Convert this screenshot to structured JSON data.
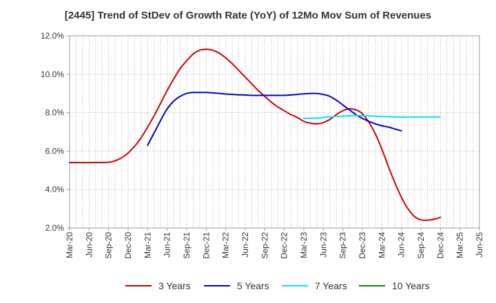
{
  "chart_data": {
    "type": "line",
    "title": "[2445]  Trend of StDev of Growth Rate (YoY) of 12Mo Mov Sum of Revenues",
    "xlabel": "",
    "ylabel": "",
    "ylim": [
      2.0,
      12.0
    ],
    "yticks": [
      2.0,
      4.0,
      6.0,
      8.0,
      10.0,
      12.0
    ],
    "ytick_labels": [
      "2.0%",
      "4.0%",
      "6.0%",
      "8.0%",
      "10.0%",
      "12.0%"
    ],
    "xtick_labels": [
      "Mar-20",
      "Jun-20",
      "Sep-20",
      "Dec-20",
      "Mar-21",
      "Jun-21",
      "Sep-21",
      "Dec-21",
      "Mar-22",
      "Jun-22",
      "Sep-22",
      "Dec-22",
      "Mar-23",
      "Jun-23",
      "Sep-23",
      "Dec-23",
      "Mar-24",
      "Jun-24",
      "Sep-24",
      "Dec-24",
      "Mar-25",
      "Jun-25"
    ],
    "x_index_range": [
      0,
      63
    ],
    "grid": true,
    "legend_position": "bottom",
    "series": [
      {
        "name": "3 Years",
        "color": "#cc0000",
        "points": [
          [
            0,
            5.4
          ],
          [
            3,
            5.4
          ],
          [
            6,
            5.42
          ],
          [
            7,
            5.5
          ],
          [
            8,
            5.65
          ],
          [
            9,
            5.9
          ],
          [
            10,
            6.25
          ],
          [
            11,
            6.7
          ],
          [
            12,
            7.25
          ],
          [
            13,
            7.85
          ],
          [
            14,
            8.5
          ],
          [
            15,
            9.15
          ],
          [
            16,
            9.75
          ],
          [
            17,
            10.3
          ],
          [
            18,
            10.7
          ],
          [
            19,
            11.05
          ],
          [
            20,
            11.25
          ],
          [
            21,
            11.3
          ],
          [
            22,
            11.25
          ],
          [
            23,
            11.1
          ],
          [
            24,
            10.85
          ],
          [
            25,
            10.55
          ],
          [
            26,
            10.2
          ],
          [
            27,
            9.85
          ],
          [
            28,
            9.5
          ],
          [
            29,
            9.15
          ],
          [
            30,
            8.85
          ],
          [
            31,
            8.55
          ],
          [
            32,
            8.3
          ],
          [
            33,
            8.1
          ],
          [
            34,
            7.9
          ],
          [
            35,
            7.75
          ],
          [
            36,
            7.55
          ],
          [
            37,
            7.45
          ],
          [
            38,
            7.42
          ],
          [
            39,
            7.48
          ],
          [
            40,
            7.65
          ],
          [
            41,
            7.9
          ],
          [
            42,
            8.1
          ],
          [
            43,
            8.2
          ],
          [
            44,
            8.15
          ],
          [
            45,
            7.95
          ],
          [
            46,
            7.5
          ],
          [
            47,
            6.9
          ],
          [
            48,
            6.1
          ],
          [
            49,
            5.2
          ],
          [
            50,
            4.35
          ],
          [
            51,
            3.6
          ],
          [
            52,
            3.0
          ],
          [
            53,
            2.6
          ],
          [
            54,
            2.42
          ],
          [
            55,
            2.4
          ],
          [
            56,
            2.45
          ],
          [
            57,
            2.55
          ]
        ]
      },
      {
        "name": "5 Years",
        "color": "#0000cc",
        "points": [
          [
            12,
            6.3
          ],
          [
            13,
            6.95
          ],
          [
            14,
            7.6
          ],
          [
            15,
            8.2
          ],
          [
            16,
            8.6
          ],
          [
            17,
            8.85
          ],
          [
            18,
            9.0
          ],
          [
            19,
            9.05
          ],
          [
            20,
            9.05
          ],
          [
            21,
            9.05
          ],
          [
            22,
            9.03
          ],
          [
            23,
            9.0
          ],
          [
            24,
            8.97
          ],
          [
            25,
            8.95
          ],
          [
            26,
            8.93
          ],
          [
            27,
            8.92
          ],
          [
            28,
            8.9
          ],
          [
            29,
            8.9
          ],
          [
            30,
            8.9
          ],
          [
            31,
            8.9
          ],
          [
            32,
            8.9
          ],
          [
            33,
            8.9
          ],
          [
            34,
            8.92
          ],
          [
            35,
            8.95
          ],
          [
            36,
            8.98
          ],
          [
            37,
            9.0
          ],
          [
            38,
            9.0
          ],
          [
            39,
            8.95
          ],
          [
            40,
            8.85
          ],
          [
            41,
            8.65
          ],
          [
            42,
            8.4
          ],
          [
            43,
            8.15
          ],
          [
            44,
            7.9
          ],
          [
            45,
            7.7
          ],
          [
            46,
            7.55
          ],
          [
            47,
            7.42
          ],
          [
            48,
            7.32
          ],
          [
            49,
            7.25
          ],
          [
            50,
            7.15
          ],
          [
            51,
            7.05
          ]
        ]
      },
      {
        "name": "7 Years",
        "color": "#00e5ee",
        "points": [
          [
            36,
            7.7
          ],
          [
            38,
            7.72
          ],
          [
            40,
            7.78
          ],
          [
            42,
            7.82
          ],
          [
            44,
            7.85
          ],
          [
            46,
            7.83
          ],
          [
            48,
            7.8
          ],
          [
            50,
            7.78
          ],
          [
            52,
            7.77
          ],
          [
            54,
            7.77
          ],
          [
            57,
            7.78
          ]
        ]
      },
      {
        "name": "10 Years",
        "color": "#008800",
        "points": []
      }
    ]
  }
}
